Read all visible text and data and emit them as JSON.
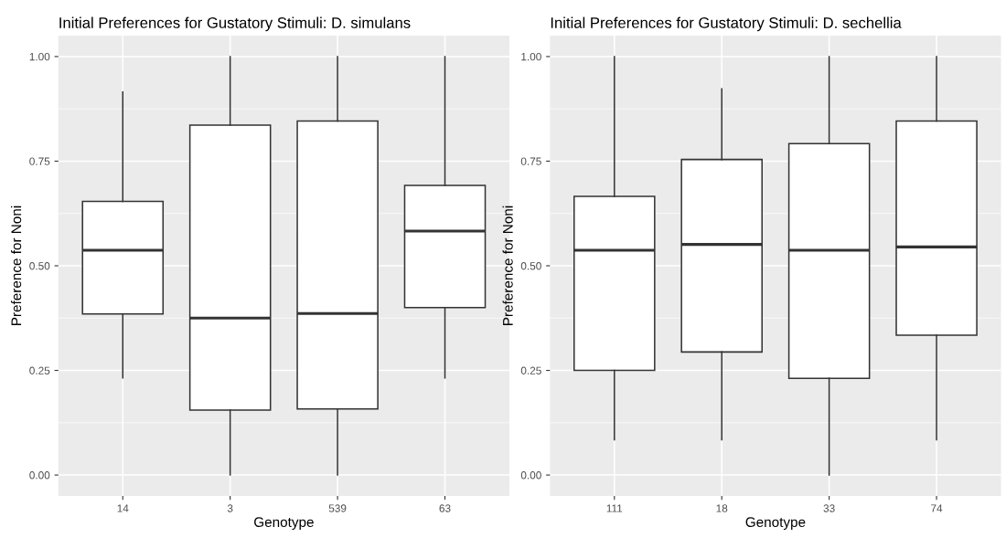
{
  "chart_data": [
    {
      "type": "box",
      "title": "Initial Preferences for Gustatory Stimuli: D. simulans",
      "xlabel": "Genotype",
      "ylabel": "Preference for Noni",
      "categories": [
        "14",
        "3",
        "539",
        "63"
      ],
      "boxes": [
        {
          "low": 0.232,
          "q1": 0.385,
          "median": 0.537,
          "q3": 0.654,
          "high": 0.915
        },
        {
          "low": 0.0,
          "q1": 0.155,
          "median": 0.375,
          "q3": 0.836,
          "high": 1.0
        },
        {
          "low": 0.0,
          "q1": 0.158,
          "median": 0.386,
          "q3": 0.846,
          "high": 1.0
        },
        {
          "low": 0.232,
          "q1": 0.4,
          "median": 0.583,
          "q3": 0.692,
          "high": 1.0
        }
      ],
      "ylim": [
        -0.05,
        1.05
      ],
      "yticks": [
        {
          "value": 0,
          "label": "0.00"
        },
        {
          "value": 0.25,
          "label": "0.25"
        },
        {
          "value": 0.5,
          "label": "0.50"
        },
        {
          "value": 0.75,
          "label": "0.75"
        },
        {
          "value": 1,
          "label": "1.00"
        }
      ],
      "grid": true
    },
    {
      "type": "box",
      "title": "Initial Preferences for Gustatory Stimuli: D. sechellia",
      "xlabel": "Genotype",
      "ylabel": "Preference for Noni",
      "categories": [
        "111",
        "18",
        "33",
        "74"
      ],
      "boxes": [
        {
          "low": 0.084,
          "q1": 0.25,
          "median": 0.537,
          "q3": 0.666,
          "high": 1.0
        },
        {
          "low": 0.084,
          "q1": 0.294,
          "median": 0.551,
          "q3": 0.754,
          "high": 0.923
        },
        {
          "low": 0.0,
          "q1": 0.231,
          "median": 0.537,
          "q3": 0.792,
          "high": 1.0
        },
        {
          "low": 0.084,
          "q1": 0.334,
          "median": 0.545,
          "q3": 0.846,
          "high": 1.0
        }
      ],
      "ylim": [
        -0.05,
        1.05
      ],
      "yticks": [
        {
          "value": 0,
          "label": "0.00"
        },
        {
          "value": 0.25,
          "label": "0.25"
        },
        {
          "value": 0.5,
          "label": "0.50"
        },
        {
          "value": 0.75,
          "label": "0.75"
        },
        {
          "value": 1,
          "label": "1.00"
        }
      ],
      "grid": true
    }
  ]
}
